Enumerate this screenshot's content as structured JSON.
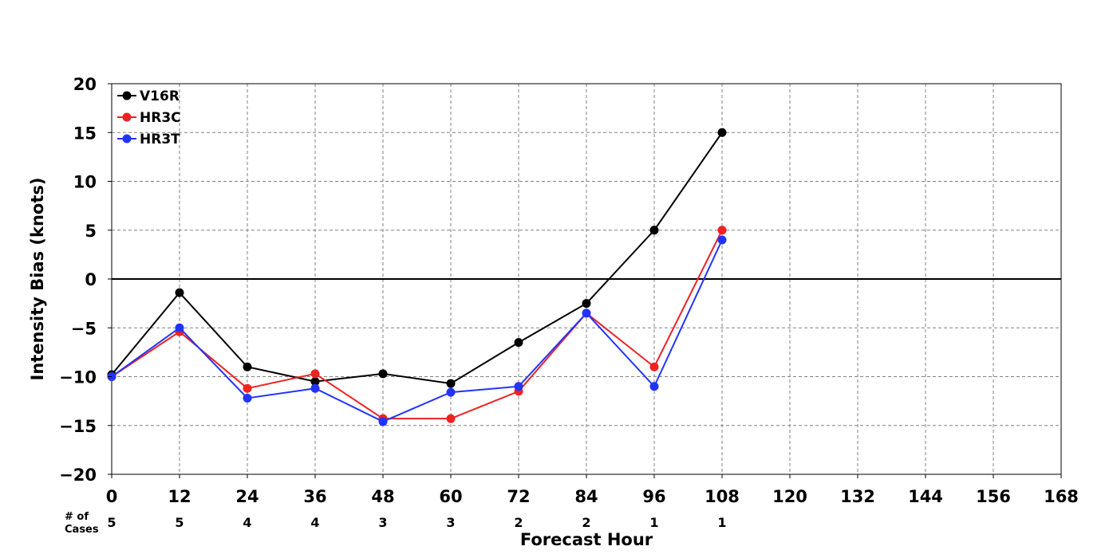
{
  "chart_data": {
    "type": "line",
    "title": "",
    "xlabel": "Forecast Hour",
    "ylabel": "Intensity Bias (knots)",
    "xlim": [
      0,
      168
    ],
    "ylim": [
      -20,
      20
    ],
    "x_ticks": [
      0,
      12,
      24,
      36,
      48,
      60,
      72,
      84,
      96,
      108,
      120,
      132,
      144,
      156,
      168
    ],
    "y_ticks": [
      20,
      15,
      10,
      5,
      0,
      -5,
      -10,
      -15,
      -20
    ],
    "y_tick_labels": [
      "20",
      "15",
      "10",
      "5",
      "0",
      "−5",
      "−10",
      "−15",
      "−20"
    ],
    "grid": true,
    "grid_style": "dashed",
    "zero_line": true,
    "legend_position": "top-left",
    "x": [
      0,
      12,
      24,
      36,
      48,
      60,
      72,
      84,
      96,
      108
    ],
    "series": [
      {
        "name": "V16R",
        "color": "#000000",
        "values": [
          -9.8,
          -1.4,
          -9.0,
          -10.5,
          -9.7,
          -10.7,
          -6.5,
          -2.5,
          5.0,
          15.0
        ]
      },
      {
        "name": "HR3C",
        "color": "#ee2222",
        "values": [
          -10.0,
          -5.4,
          -11.2,
          -9.7,
          -14.3,
          -14.3,
          -11.5,
          -3.5,
          -9.0,
          5.0
        ]
      },
      {
        "name": "HR3T",
        "color": "#2233ff",
        "values": [
          -10.0,
          -5.0,
          -12.2,
          -11.2,
          -14.6,
          -11.6,
          -11.0,
          -3.5,
          -11.0,
          4.0
        ]
      }
    ],
    "cases": {
      "label_line1": "# of",
      "label_line2": "Cases",
      "x": [
        0,
        12,
        24,
        36,
        48,
        60,
        72,
        84,
        96,
        108
      ],
      "values": [
        "5",
        "5",
        "4",
        "4",
        "3",
        "3",
        "2",
        "2",
        "1",
        "1"
      ]
    }
  }
}
